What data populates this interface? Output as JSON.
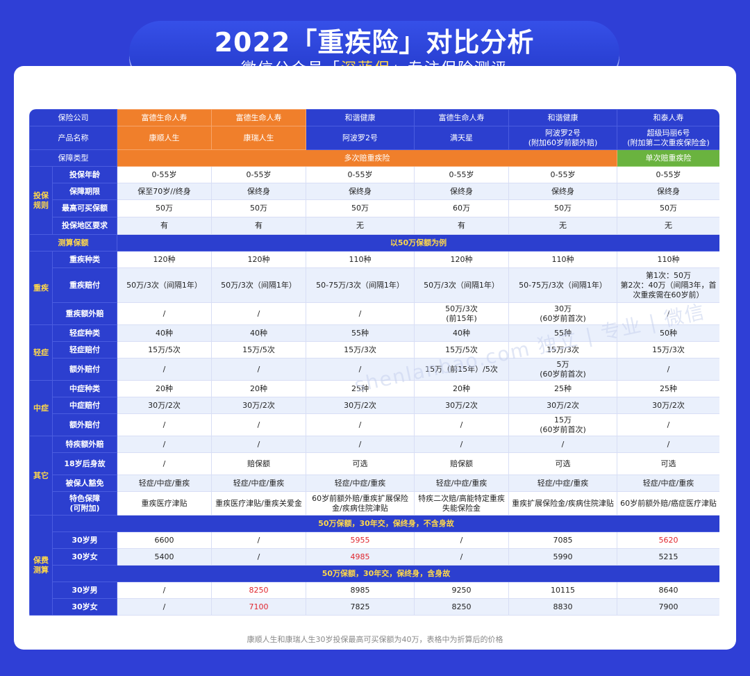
{
  "banner": {
    "title": "2022「重疾险」对比分析",
    "sub_pre": "微信公众号「",
    "sub_hl": "深蓝保",
    "sub_post": "」专注保险测评"
  },
  "watermark": "shenlanbao.com  独立 | 专业 | 微信",
  "header": {
    "company_label": "保险公司",
    "product_label": "产品名称",
    "type_label": "保障类型",
    "companies": [
      "富德生命人寿",
      "富德生命人寿",
      "和谐健康",
      "富德生命人寿",
      "和谐健康",
      "和泰人寿"
    ],
    "products": [
      "康顺人生",
      "康瑞人生",
      "阿波罗2号",
      "满天星",
      "阿波罗2号\n(附加60岁前额外赔)",
      "超级玛丽6号\n(附加第二次重疾保险金)"
    ],
    "type_multi": "多次赔重疾险",
    "type_single": "单次赔重疾险"
  },
  "sections": {
    "rules": "投保\n规则",
    "calc": "测算保额",
    "calc_note": "以50万保额为例",
    "critical": "重疾",
    "mild": "轻症",
    "moderate": "中症",
    "other": "其它",
    "premium": "保费\n测算"
  },
  "rules_rows": [
    {
      "label": "投保年龄",
      "v": [
        "0-55岁",
        "0-55岁",
        "0-55岁",
        "0-55岁",
        "0-55岁",
        "0-55岁"
      ]
    },
    {
      "label": "保障期限",
      "v": [
        "保至70岁//终身",
        "保终身",
        "保终身",
        "保终身",
        "保终身",
        "保终身"
      ]
    },
    {
      "label": "最高可买保额",
      "v": [
        "50万",
        "50万",
        "50万",
        "60万",
        "50万",
        "50万"
      ]
    },
    {
      "label": "投保地区要求",
      "v": [
        "有",
        "有",
        "无",
        "有",
        "无",
        "无"
      ]
    }
  ],
  "critical_rows": [
    {
      "label": "重疾种类",
      "v": [
        "120种",
        "120种",
        "110种",
        "120种",
        "110种",
        "110种"
      ]
    },
    {
      "label": "重疾赔付",
      "v": [
        "50万/3次（间隔1年）",
        "50万/3次（间隔1年）",
        "50-75万/3次（间隔1年）",
        "50万/3次（间隔1年）",
        "50-75万/3次（间隔1年）",
        "第1次：50万\n第2次：40万（间隔3年，首次重疾需在60岁前）"
      ]
    },
    {
      "label": "重疾额外赔",
      "v": [
        "/",
        "/",
        "/",
        "50万/3次\n(前15年)",
        "30万\n(60岁前首次)",
        "/"
      ]
    }
  ],
  "mild_rows": [
    {
      "label": "轻症种类",
      "v": [
        "40种",
        "40种",
        "55种",
        "40种",
        "55种",
        "50种"
      ]
    },
    {
      "label": "轻症赔付",
      "v": [
        "15万/5次",
        "15万/5次",
        "15万/3次",
        "15万/5次",
        "15万/3次",
        "15万/3次"
      ]
    },
    {
      "label": "额外赔付",
      "v": [
        "/",
        "/",
        "/",
        "15万（前15年）/5次",
        "5万\n(60岁前首次)",
        "/"
      ]
    }
  ],
  "moderate_rows": [
    {
      "label": "中症种类",
      "v": [
        "20种",
        "20种",
        "25种",
        "20种",
        "25种",
        "25种"
      ]
    },
    {
      "label": "中症赔付",
      "v": [
        "30万/2次",
        "30万/2次",
        "30万/2次",
        "30万/2次",
        "30万/2次",
        "30万/2次"
      ]
    },
    {
      "label": "额外赔付",
      "v": [
        "/",
        "/",
        "/",
        "/",
        "15万\n(60岁前首次)",
        "/"
      ]
    }
  ],
  "other_rows": [
    {
      "label": "特疾额外赔",
      "v": [
        "/",
        "/",
        "/",
        "/",
        "/",
        "/"
      ]
    },
    {
      "label": "18岁后身故",
      "v": [
        "/",
        "赔保额",
        "可选",
        "赔保额",
        "可选",
        "可选"
      ]
    },
    {
      "label": "被保人豁免",
      "v": [
        "轻症/中症/重疾",
        "轻症/中症/重疾",
        "轻症/中症/重疾",
        "轻症/中症/重疾",
        "轻症/中症/重疾",
        "轻症/中症/重疾"
      ]
    },
    {
      "label": "特色保障\n(可附加)",
      "v": [
        "重疾医疗津贴",
        "重疾医疗津贴/重疾关爱金",
        "60岁前额外赔/重疾扩展保险金/疾病住院津贴",
        "特疾二次赔/高能特定重疾失能保险金",
        "重疾扩展保险金/疾病住院津贴",
        "60岁前额外赔/癌症医疗津贴"
      ]
    }
  ],
  "premium": {
    "note1": "50万保额，30年交，保终身，不含身故",
    "rows1": [
      {
        "label": "30岁男",
        "v": [
          "6600",
          "/",
          "5955",
          "/",
          "7085",
          "5620"
        ],
        "red": [
          2,
          5
        ]
      },
      {
        "label": "30岁女",
        "v": [
          "5400",
          "/",
          "4985",
          "/",
          "5990",
          "5215"
        ],
        "red": [
          2
        ]
      }
    ],
    "note2": "50万保额，30年交，保终身，含身故",
    "rows2": [
      {
        "label": "30岁男",
        "v": [
          "/",
          "8250",
          "8985",
          "9250",
          "10115",
          "8640"
        ],
        "red": [
          1
        ]
      },
      {
        "label": "30岁女",
        "v": [
          "/",
          "7100",
          "7825",
          "8250",
          "8830",
          "7900"
        ],
        "red": [
          1
        ]
      }
    ]
  },
  "footnote": "康顺人生和康瑞人生30岁投保最高可买保额为40万，表格中为折算后的价格",
  "colors": {
    "blue": "#2c3fcf",
    "orange": "#f07f2b",
    "green": "#6ab33f",
    "yellow": "#ffd84a",
    "red": "#e0262e"
  }
}
